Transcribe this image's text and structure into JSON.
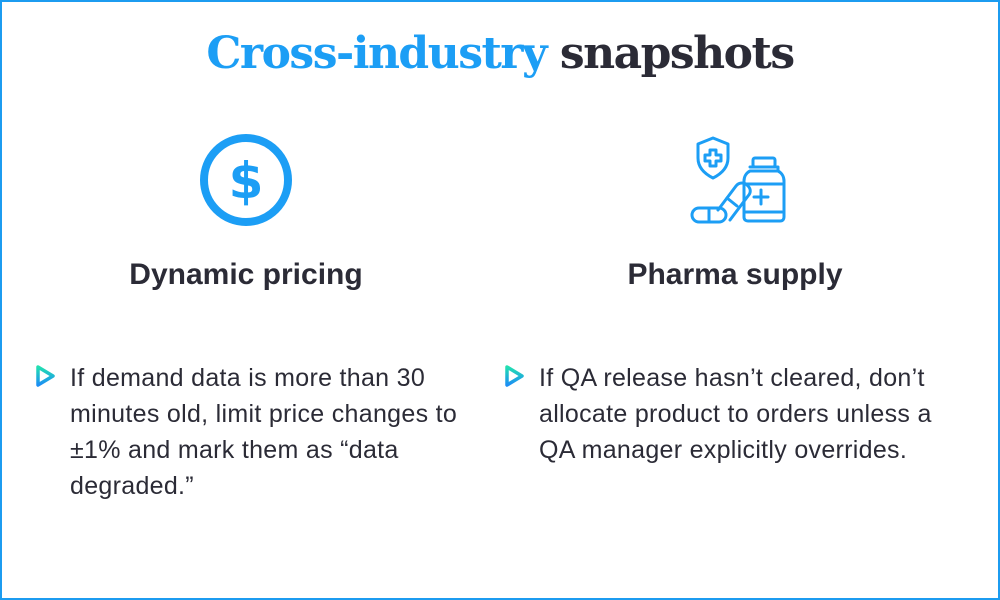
{
  "title": {
    "accent": "Cross-industry",
    "rest": "snapshots"
  },
  "accent_color": "#1c9ef5",
  "columns": [
    {
      "icon": "dollar-circle-icon",
      "heading": "Dynamic pricing",
      "bullet": "If demand data is more than 30 minutes old, limit price changes to ±1% and mark them as “data degraded.”"
    },
    {
      "icon": "pharma-icon",
      "heading": "Pharma supply",
      "bullet": "If QA release hasn’t cleared, don’t allocate product to orders unless a QA manager explicitly overrides."
    }
  ]
}
